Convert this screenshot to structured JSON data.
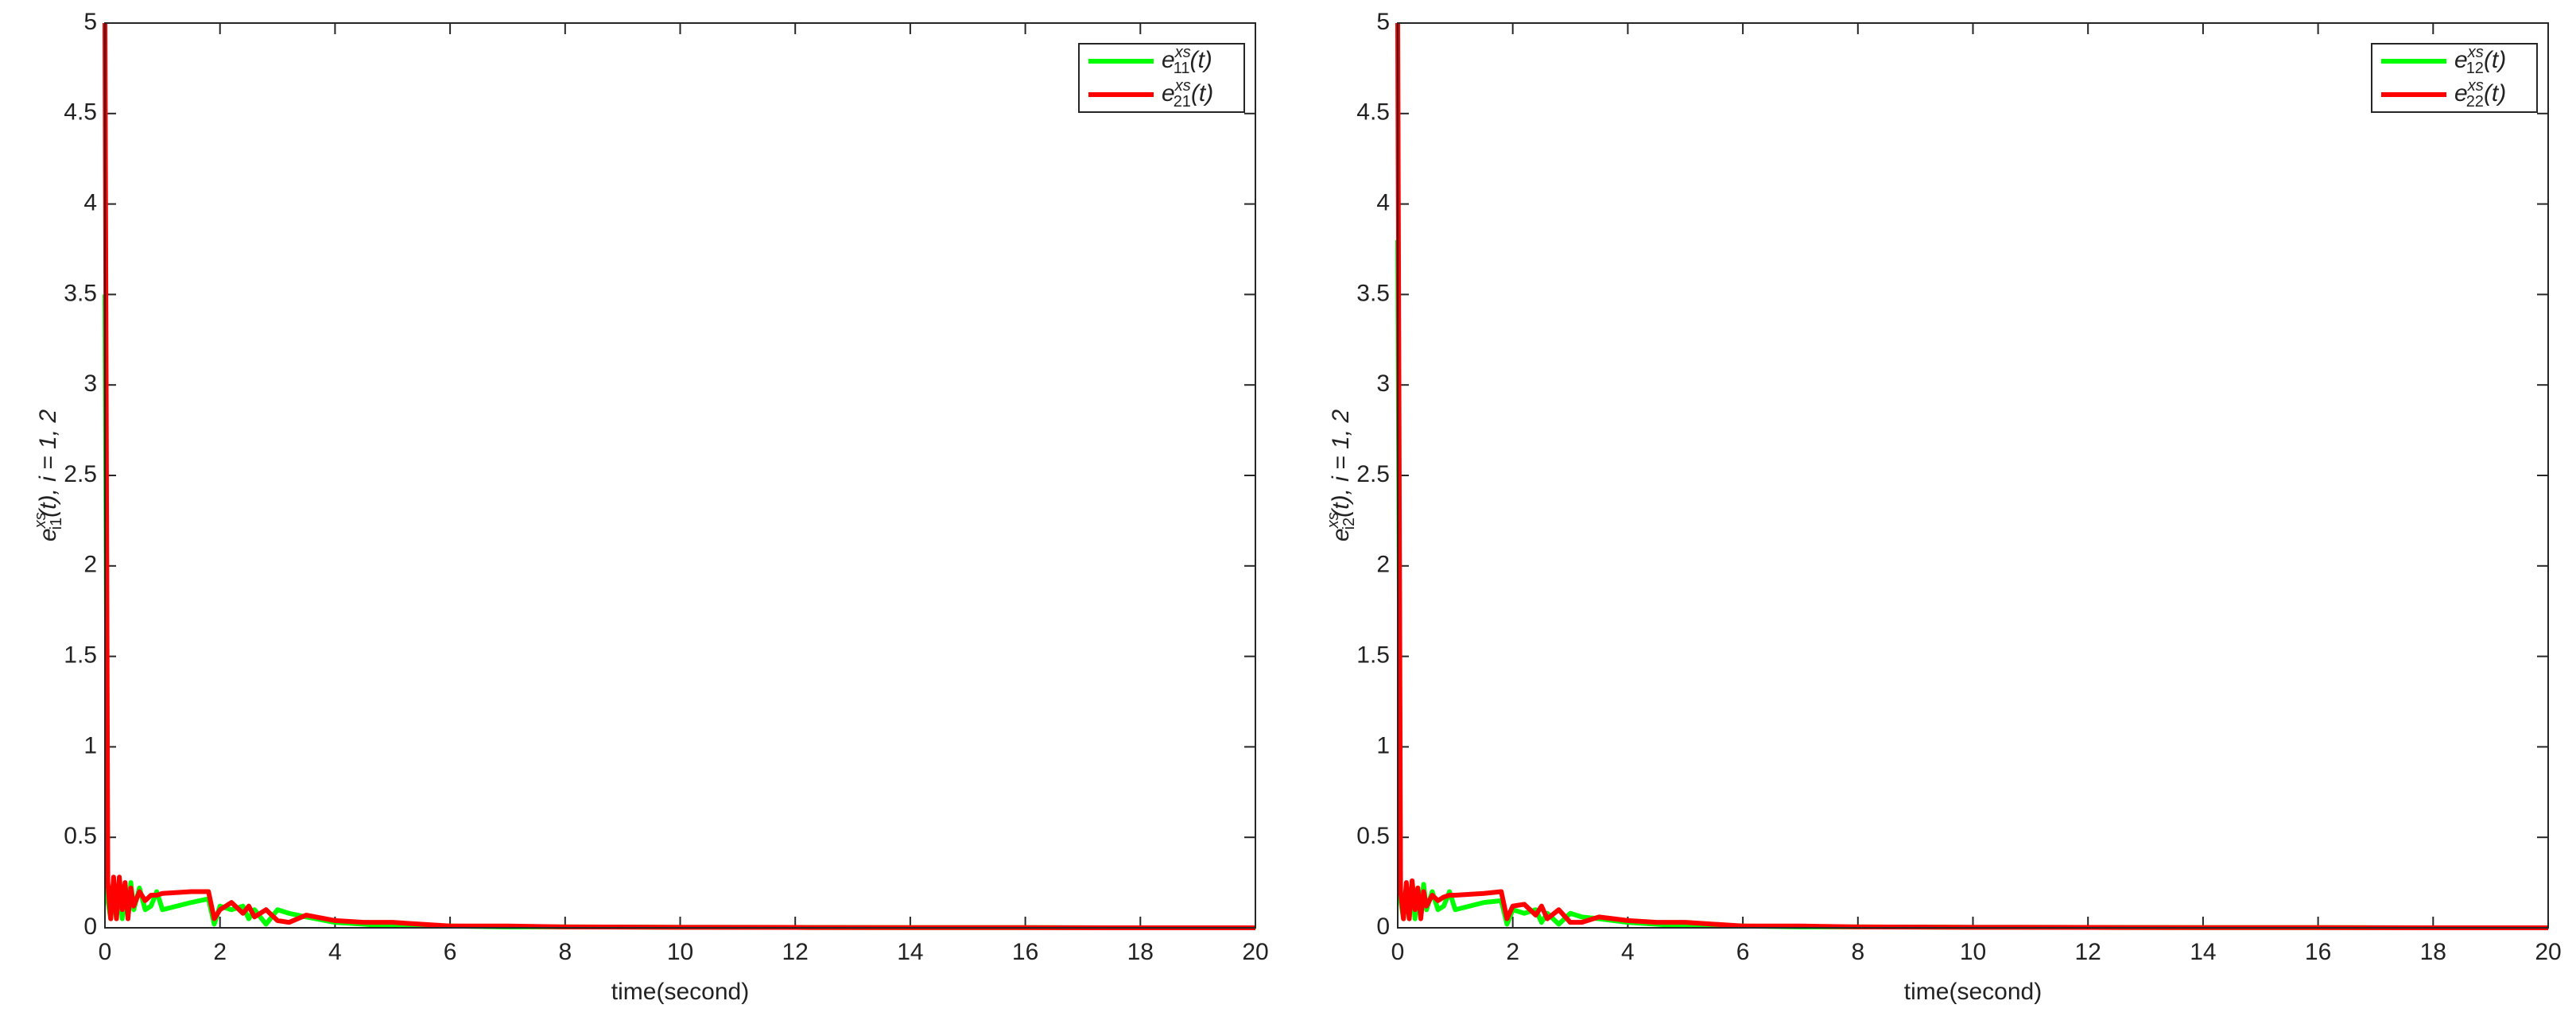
{
  "chart_data": [
    {
      "type": "line",
      "x_label": "time(second)",
      "y_label": {
        "base": "e",
        "sub": "i1",
        "sup": "xs",
        "rest": "(t), i = 1, 2"
      },
      "x": [
        0,
        0.05,
        0.1,
        0.15,
        0.2,
        0.25,
        0.3,
        0.35,
        0.4,
        0.45,
        0.5,
        0.6,
        0.7,
        0.8,
        0.9,
        1.0,
        1.5,
        1.8,
        1.9,
        2.0,
        2.2,
        2.4,
        2.5,
        2.6,
        2.8,
        3.0,
        3.2,
        3.5,
        4,
        4.5,
        5,
        5.5,
        6,
        7,
        8,
        10,
        12,
        14,
        16,
        18,
        20
      ],
      "series": [
        {
          "name": {
            "base": "e",
            "sub": "11",
            "sup": "xs",
            "arg": "(t)"
          },
          "color": "#00ff00",
          "values": [
            3.5,
            0.15,
            0.05,
            0.2,
            0.05,
            0.25,
            0.05,
            0.2,
            0.08,
            0.25,
            0.1,
            0.22,
            0.1,
            0.12,
            0.2,
            0.1,
            0.14,
            0.16,
            0.02,
            0.12,
            0.1,
            0.12,
            0.05,
            0.1,
            0.02,
            0.1,
            0.08,
            0.06,
            0.03,
            0.02,
            0.01,
            0.01,
            0.01,
            0.005,
            0.005,
            0.003,
            0.002,
            0.001,
            0.001,
            0,
            0
          ]
        },
        {
          "name": {
            "base": "e",
            "sub": "21",
            "sup": "xs",
            "arg": "(t)"
          },
          "color": "#ff0000",
          "values": [
            5,
            0.25,
            0.05,
            0.28,
            0.05,
            0.28,
            0.1,
            0.25,
            0.05,
            0.22,
            0.12,
            0.2,
            0.15,
            0.18,
            0.18,
            0.19,
            0.2,
            0.2,
            0.05,
            0.1,
            0.14,
            0.08,
            0.12,
            0.06,
            0.1,
            0.04,
            0.03,
            0.07,
            0.04,
            0.03,
            0.03,
            0.02,
            0.01,
            0.01,
            0.005,
            0.003,
            0.002,
            0.001,
            0.001,
            0,
            0
          ]
        }
      ],
      "xlim": [
        0,
        20
      ],
      "xticks": [
        0,
        2,
        4,
        6,
        8,
        10,
        12,
        14,
        16,
        18,
        20
      ],
      "ylim": [
        0,
        5
      ],
      "yticks": [
        0,
        0.5,
        1,
        1.5,
        2,
        2.5,
        3,
        3.5,
        4,
        4.5,
        5
      ],
      "legend": "upper-right"
    },
    {
      "type": "line",
      "x_label": "time(second)",
      "y_label": {
        "base": "e",
        "sub": "i2",
        "sup": "xs",
        "rest": "(t), i = 1, 2"
      },
      "x": [
        0,
        0.05,
        0.1,
        0.15,
        0.2,
        0.25,
        0.3,
        0.35,
        0.4,
        0.45,
        0.5,
        0.6,
        0.7,
        0.8,
        0.9,
        1.0,
        1.5,
        1.8,
        1.9,
        2.0,
        2.2,
        2.4,
        2.5,
        2.6,
        2.8,
        3.0,
        3.2,
        3.5,
        4,
        4.5,
        5,
        5.5,
        6,
        7,
        8,
        10,
        12,
        14,
        16,
        18,
        20
      ],
      "series": [
        {
          "name": {
            "base": "e",
            "sub": "12",
            "sup": "xs",
            "arg": "(t)"
          },
          "color": "#00ff00",
          "values": [
            3.8,
            0.15,
            0.05,
            0.22,
            0.05,
            0.25,
            0.05,
            0.22,
            0.08,
            0.24,
            0.1,
            0.2,
            0.1,
            0.12,
            0.2,
            0.1,
            0.14,
            0.15,
            0.02,
            0.1,
            0.08,
            0.1,
            0.03,
            0.08,
            0.02,
            0.08,
            0.06,
            0.05,
            0.03,
            0.02,
            0.01,
            0.01,
            0.01,
            0.005,
            0.005,
            0.003,
            0.002,
            0.001,
            0.001,
            0,
            0
          ]
        },
        {
          "name": {
            "base": "e",
            "sub": "22",
            "sup": "xs",
            "arg": "(t)"
          },
          "color": "#ff0000",
          "values": [
            5,
            0.2,
            0.05,
            0.25,
            0.05,
            0.26,
            0.1,
            0.22,
            0.05,
            0.2,
            0.12,
            0.18,
            0.15,
            0.17,
            0.18,
            0.18,
            0.19,
            0.2,
            0.05,
            0.12,
            0.13,
            0.07,
            0.12,
            0.05,
            0.1,
            0.03,
            0.03,
            0.06,
            0.04,
            0.03,
            0.03,
            0.02,
            0.01,
            0.01,
            0.005,
            0.003,
            0.002,
            0.001,
            0.001,
            0,
            0
          ]
        }
      ],
      "xlim": [
        0,
        20
      ],
      "xticks": [
        0,
        2,
        4,
        6,
        8,
        10,
        12,
        14,
        16,
        18,
        20
      ],
      "ylim": [
        0,
        5
      ],
      "yticks": [
        0,
        0.5,
        1,
        1.5,
        2,
        2.5,
        3,
        3.5,
        4,
        4.5,
        5
      ],
      "legend": "upper-right"
    }
  ]
}
